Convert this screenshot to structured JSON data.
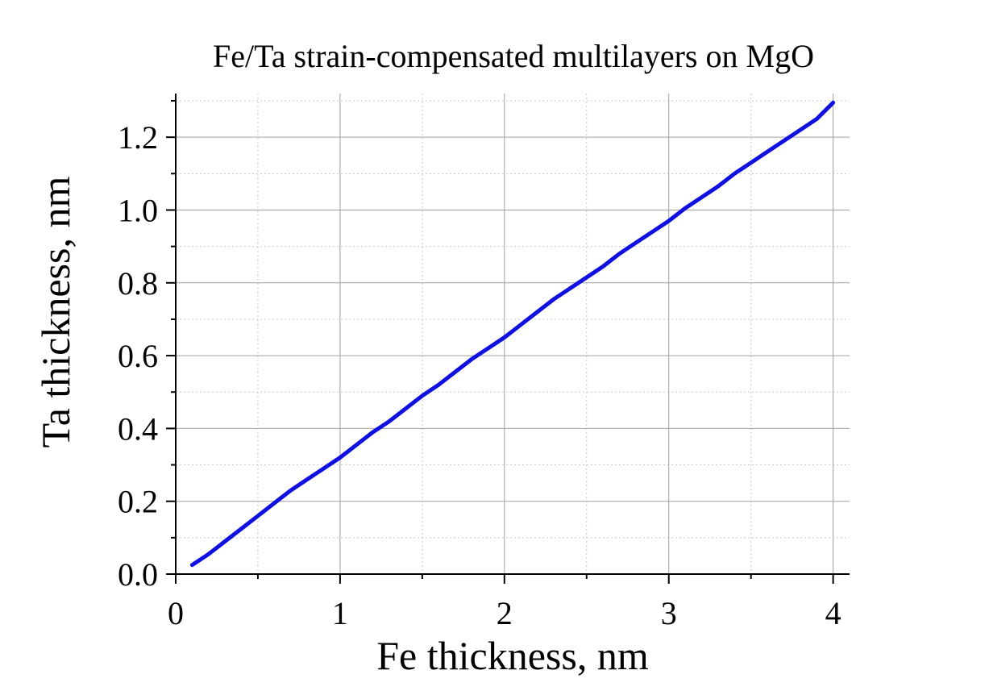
{
  "chart_data": {
    "type": "line",
    "title": "Fe/Ta strain-compensated multilayers on MgO",
    "xlabel": "Fe thickness, nm",
    "ylabel": "Ta thickness, nm",
    "xlim": [
      0,
      4.1
    ],
    "ylim": [
      0,
      1.32
    ],
    "xticks": [
      0,
      1,
      2,
      3,
      4
    ],
    "xtick_labels": [
      "0",
      "1",
      "2",
      "3",
      "4"
    ],
    "yticks": [
      0.0,
      0.2,
      0.4,
      0.6,
      0.8,
      1.0,
      1.2
    ],
    "ytick_labels": [
      "0.0",
      "0.2",
      "0.4",
      "0.6",
      "0.8",
      "1.0",
      "1.2"
    ],
    "grid": true,
    "series": [
      {
        "color": "#1010e0",
        "x": [
          0.1,
          0.2,
          0.3,
          0.4,
          0.5,
          0.6,
          0.7,
          0.8,
          0.9,
          1.0,
          1.1,
          1.2,
          1.3,
          1.4,
          1.5,
          1.6,
          1.7,
          1.8,
          1.9,
          2.0,
          2.1,
          2.2,
          2.3,
          2.4,
          2.5,
          2.6,
          2.7,
          2.8,
          2.9,
          3.0,
          3.1,
          3.2,
          3.3,
          3.4,
          3.5,
          3.6,
          3.7,
          3.8,
          3.9,
          4.0
        ],
        "y": [
          0.025,
          0.055,
          0.09,
          0.125,
          0.16,
          0.195,
          0.23,
          0.26,
          0.29,
          0.32,
          0.355,
          0.39,
          0.42,
          0.455,
          0.49,
          0.52,
          0.555,
          0.59,
          0.62,
          0.65,
          0.685,
          0.72,
          0.755,
          0.785,
          0.815,
          0.845,
          0.88,
          0.91,
          0.94,
          0.97,
          1.005,
          1.035,
          1.065,
          1.1,
          1.13,
          1.16,
          1.19,
          1.22,
          1.25,
          1.295
        ]
      }
    ]
  }
}
